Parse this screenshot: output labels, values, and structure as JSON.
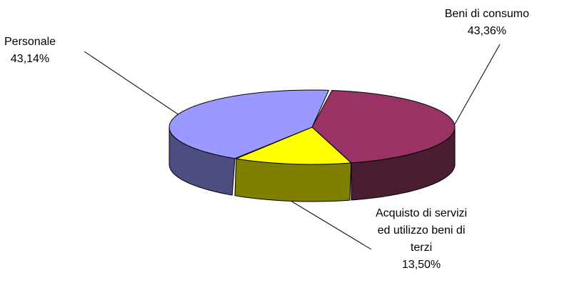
{
  "chart_data": {
    "type": "pie",
    "three_d": true,
    "title": "",
    "legend": "none",
    "slices": [
      {
        "label_lines": [
          "Beni di consumo"
        ],
        "value": 43.36,
        "value_label": "43,36%",
        "color": "#993366",
        "side_color": "#4a1d33"
      },
      {
        "label_lines": [
          "Acquisto di servizi",
          "ed utilizzo beni di",
          "terzi"
        ],
        "value": 13.5,
        "value_label": "13,50%",
        "color": "#ffff00",
        "side_color": "#808000"
      },
      {
        "label_lines": [
          "Personale"
        ],
        "value": 43.14,
        "value_label": "43,14%",
        "color": "#9999ff",
        "side_color": "#4d4d80"
      }
    ]
  }
}
